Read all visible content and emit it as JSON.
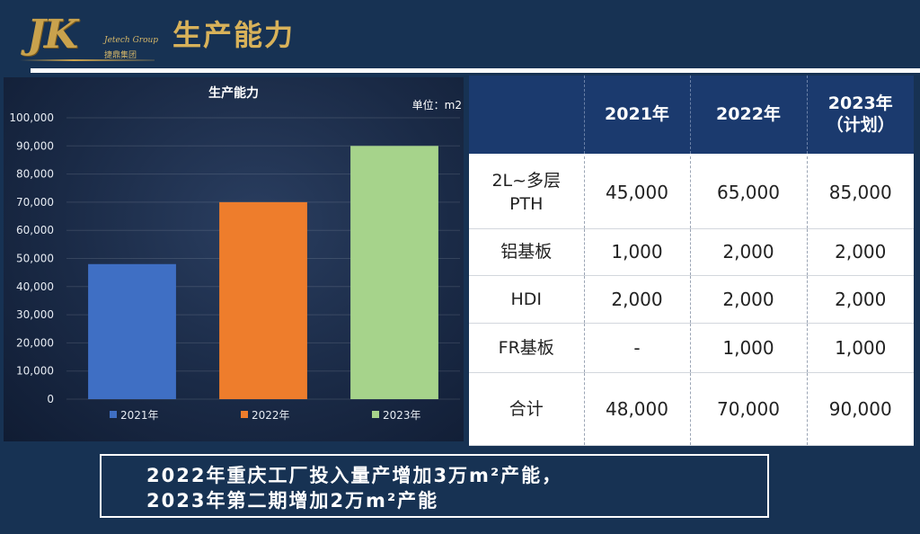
{
  "logo": {
    "mark": "JK",
    "sub_en": "Jetech Group",
    "sub_cn": "捷鼎集团"
  },
  "page_title": "生产能力",
  "chart_data": {
    "type": "bar",
    "title": "生产能力",
    "unit_label": "单位：m2",
    "categories": [
      "2021年",
      "2022年",
      "2023年"
    ],
    "values": [
      48000,
      70000,
      90000
    ],
    "colors": [
      "#3f6fc4",
      "#ee7d2c",
      "#a6d38b"
    ],
    "ylim": [
      0,
      100000
    ],
    "yticks": [
      "0",
      "10,000",
      "20,000",
      "30,000",
      "40,000",
      "50,000",
      "60,000",
      "70,000",
      "80,000",
      "90,000",
      "100,000"
    ],
    "legend": [
      "2021年",
      "2022年",
      "2023年"
    ],
    "legend_position": "bottom",
    "grid": true
  },
  "table": {
    "headers": [
      "",
      "2021年",
      "2022年",
      "2023年\n（计划）"
    ],
    "rows": [
      {
        "label": "2L~多层\nPTH",
        "cells": [
          "45,000",
          "65,000",
          "85,000"
        ]
      },
      {
        "label": "铝基板",
        "cells": [
          "1,000",
          "2,000",
          "2,000"
        ]
      },
      {
        "label": "HDI",
        "cells": [
          "2,000",
          "2,000",
          "2,000"
        ]
      },
      {
        "label": "FR基板",
        "cells": [
          "-",
          "1,000",
          "1,000"
        ]
      },
      {
        "label": "合计",
        "cells": [
          "48,000",
          "70,000",
          "90,000"
        ]
      }
    ]
  },
  "note": {
    "line1": "2022年重庆工厂投入量产增加3万m²产能，",
    "line2": "2023年第二期增加2万m²产能"
  }
}
